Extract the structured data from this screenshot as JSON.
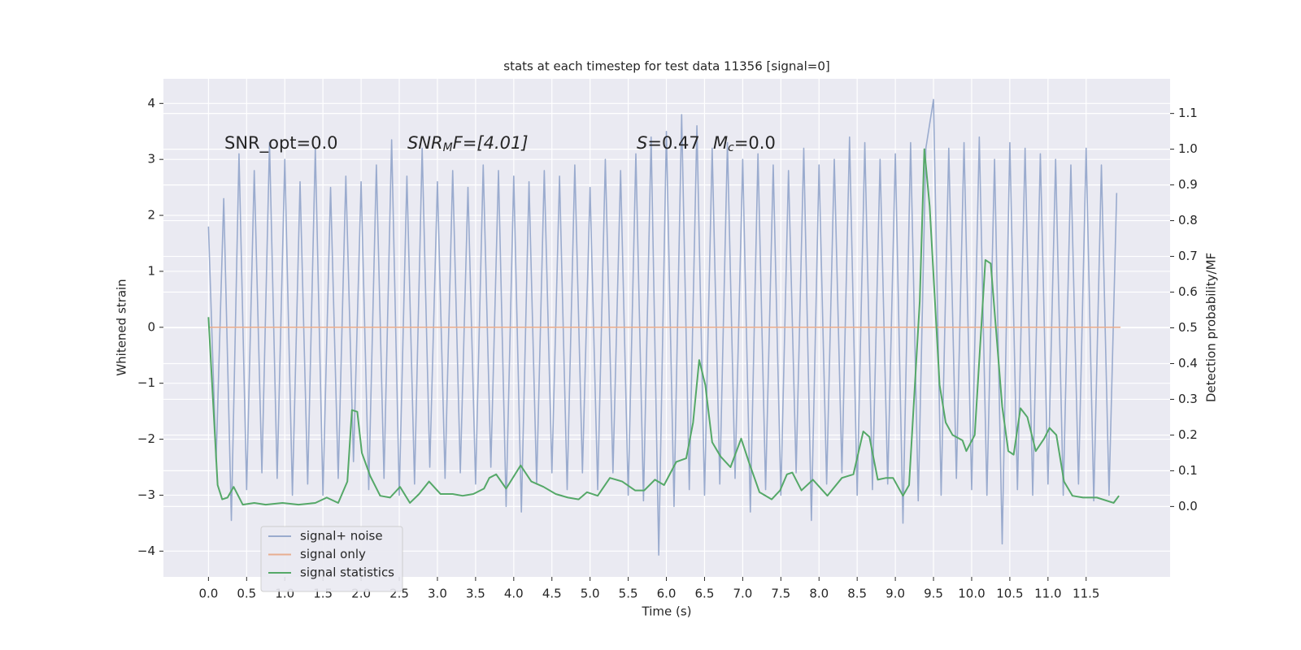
{
  "chart_data": {
    "type": "line",
    "title": "stats at each timestep for test data 11356 [signal=0]",
    "xlabel": "Time (s)",
    "ylabel": "Whitened strain",
    "y2label": "Detection probability/MF",
    "annotations": [
      [
        "SNR_opt=0.0"
      ],
      [
        "SNR",
        "M",
        "F=[4.01]"
      ],
      [
        "S",
        "=0.47"
      ],
      [
        "M",
        "c",
        "=0.0"
      ]
    ],
    "xlim": [
      -0.59,
      12.6
    ],
    "xticks": [
      {
        "value": 0,
        "label": "0.0"
      },
      0.5,
      {
        "value": 1,
        "label": "1.0"
      },
      1.5,
      {
        "value": 2,
        "label": "2.0"
      },
      2.5,
      {
        "value": 3,
        "label": "3.0"
      },
      3.5,
      {
        "value": 4,
        "label": "4.0"
      },
      4.5,
      {
        "value": 5,
        "label": "5.0"
      },
      5.5,
      {
        "value": 6,
        "label": "6.0"
      },
      6.5,
      {
        "value": 7,
        "label": "7.0"
      },
      7.5,
      {
        "value": 8,
        "label": "8.0"
      },
      8.5,
      {
        "value": 9,
        "label": "9.0"
      },
      9.5,
      {
        "value": 10,
        "label": "10.0"
      },
      10.5,
      {
        "value": 11,
        "label": "11.0"
      },
      11.5
    ],
    "ylim": [
      -4.46,
      4.44
    ],
    "yticks": [
      {
        "value": -4,
        "label": "−4"
      },
      {
        "value": -3,
        "label": "−3"
      },
      {
        "value": -2,
        "label": "−2"
      },
      {
        "value": -1,
        "label": "−1"
      },
      0,
      1,
      2,
      3,
      4
    ],
    "y2lim": [
      -0.197,
      1.197
    ],
    "y2ticks": [
      {
        "value": 0,
        "label": "0.0"
      },
      0.1,
      0.2,
      0.3,
      0.4,
      0.5,
      0.6,
      0.7,
      0.8,
      0.9,
      {
        "value": 1,
        "label": "1.0"
      },
      1.1
    ],
    "grid": true,
    "background": "#eaeaf2",
    "legend": "lower left",
    "series": [
      {
        "name": "signal+ noise",
        "color": "#9aabce",
        "x": [
          0,
          0.1,
          0.2,
          0.3,
          0.4,
          0.5,
          0.6,
          0.7,
          0.8,
          0.9,
          1,
          1.1,
          1.2,
          1.3,
          1.4,
          1.5,
          1.6,
          1.7,
          1.8,
          1.9,
          2,
          2.1,
          2.2,
          2.3,
          2.4,
          2.5,
          2.6,
          2.7,
          2.8,
          2.9,
          3,
          3.1,
          3.2,
          3.3,
          3.4,
          3.5,
          3.6,
          3.7,
          3.8,
          3.9,
          4,
          4.1,
          4.2,
          4.3,
          4.4,
          4.5,
          4.6,
          4.7,
          4.8,
          4.9,
          5,
          5.1,
          5.2,
          5.3,
          5.4,
          5.5,
          5.6,
          5.7,
          5.8,
          5.9,
          6,
          6.1,
          6.2,
          6.3,
          6.4,
          6.5,
          6.6,
          6.7,
          6.8,
          6.9,
          7,
          7.1,
          7.2,
          7.3,
          7.4,
          7.5,
          7.6,
          7.7,
          7.8,
          7.9,
          8,
          8.1,
          8.2,
          8.3,
          8.4,
          8.5,
          8.6,
          8.7,
          8.8,
          8.9,
          9,
          9.1,
          9.2,
          9.3,
          9.4,
          9.5,
          9.6,
          9.7,
          9.8,
          9.9,
          10,
          10.1,
          10.2,
          10.3,
          10.4,
          10.5,
          10.6,
          10.7,
          10.8,
          10.9,
          11,
          11.1,
          11.2,
          11.3,
          11.4,
          11.5,
          11.6,
          11.7,
          11.8,
          11.9
        ],
        "values": [
          1.8,
          -2.4,
          2.3,
          -3.45,
          3.1,
          -2.9,
          2.8,
          -2.6,
          3.3,
          -2.7,
          3.0,
          -3.0,
          2.6,
          -2.8,
          3.2,
          -3.0,
          2.5,
          -2.7,
          2.7,
          -2.4,
          2.6,
          -2.9,
          2.9,
          -2.7,
          3.35,
          -3.0,
          2.7,
          -2.8,
          3.2,
          -2.5,
          2.6,
          -2.7,
          2.8,
          -2.6,
          2.5,
          -2.8,
          2.9,
          -2.5,
          2.8,
          -3.2,
          2.7,
          -3.3,
          2.6,
          -2.8,
          2.8,
          -2.6,
          2.7,
          -2.9,
          2.9,
          -2.6,
          2.5,
          -2.9,
          3.0,
          -2.6,
          2.8,
          -3.0,
          3.1,
          -3.1,
          3.4,
          -4.07,
          3.5,
          -3.2,
          3.8,
          -2.9,
          3.6,
          -3.0,
          3.2,
          -2.8,
          3.3,
          -2.7,
          3.0,
          -3.3,
          3.1,
          -2.9,
          2.9,
          -3.0,
          2.8,
          -2.6,
          3.2,
          -3.45,
          2.9,
          -2.8,
          3.0,
          -2.6,
          3.4,
          -3.0,
          3.3,
          -2.9,
          3.0,
          -2.8,
          3.1,
          -3.5,
          3.3,
          -3.1,
          3.2,
          4.07,
          -3.0,
          3.2,
          -2.7,
          3.3,
          -2.9,
          3.4,
          -3.0,
          3.0,
          -3.87,
          3.3,
          -2.9,
          3.2,
          -3.0,
          3.1,
          -2.8,
          3.0,
          -3.0,
          2.9,
          -2.8,
          3.2,
          -3.1,
          2.9,
          -3.0,
          2.4
        ]
      },
      {
        "name": "signal only",
        "color": "#e8ae90",
        "x": [
          0,
          11.95
        ],
        "values": [
          0,
          0
        ]
      },
      {
        "name": "signal statistics",
        "color": "#55a868",
        "axis": "y2",
        "x": [
          0,
          0.12,
          0.18,
          0.25,
          0.33,
          0.45,
          0.6,
          0.75,
          0.97,
          1.18,
          1.4,
          1.55,
          1.7,
          1.82,
          1.88,
          1.95,
          2.01,
          2.12,
          2.25,
          2.38,
          2.51,
          2.64,
          2.76,
          2.89,
          3.04,
          3.2,
          3.33,
          3.47,
          3.61,
          3.68,
          3.77,
          3.9,
          4.09,
          4.23,
          4.39,
          4.55,
          4.71,
          4.85,
          4.96,
          5.1,
          5.26,
          5.42,
          5.59,
          5.71,
          5.85,
          5.97,
          6.13,
          6.26,
          6.35,
          6.43,
          6.51,
          6.6,
          6.71,
          6.84,
          6.98,
          7.08,
          7.22,
          7.38,
          7.49,
          7.58,
          7.65,
          7.77,
          7.92,
          8.11,
          8.3,
          8.45,
          8.58,
          8.66,
          8.77,
          8.88,
          8.97,
          9.1,
          9.18,
          9.32,
          9.38,
          9.45,
          9.58,
          9.66,
          9.75,
          9.88,
          9.93,
          10.04,
          10.18,
          10.25,
          10.4,
          10.48,
          10.55,
          10.64,
          10.73,
          10.84,
          10.95,
          11.02,
          11.11,
          11.21,
          11.32,
          11.46,
          11.64,
          11.86,
          11.93
        ],
        "values": [
          0.53,
          0.06,
          0.02,
          0.025,
          0.055,
          0.005,
          0.01,
          0.005,
          0.01,
          0.005,
          0.01,
          0.025,
          0.01,
          0.07,
          0.27,
          0.265,
          0.15,
          0.085,
          0.03,
          0.025,
          0.055,
          0.01,
          0.035,
          0.07,
          0.035,
          0.035,
          0.03,
          0.035,
          0.05,
          0.08,
          0.09,
          0.05,
          0.115,
          0.07,
          0.055,
          0.035,
          0.025,
          0.02,
          0.04,
          0.03,
          0.08,
          0.07,
          0.045,
          0.045,
          0.075,
          0.06,
          0.125,
          0.135,
          0.235,
          0.41,
          0.34,
          0.18,
          0.14,
          0.11,
          0.19,
          0.125,
          0.04,
          0.02,
          0.045,
          0.09,
          0.095,
          0.045,
          0.075,
          0.03,
          0.08,
          0.09,
          0.21,
          0.195,
          0.075,
          0.08,
          0.08,
          0.03,
          0.06,
          0.575,
          1.0,
          0.84,
          0.34,
          0.235,
          0.2,
          0.185,
          0.155,
          0.2,
          0.69,
          0.68,
          0.28,
          0.155,
          0.145,
          0.275,
          0.25,
          0.155,
          0.19,
          0.22,
          0.2,
          0.07,
          0.03,
          0.025,
          0.025,
          0.01,
          0.03
        ]
      }
    ]
  }
}
